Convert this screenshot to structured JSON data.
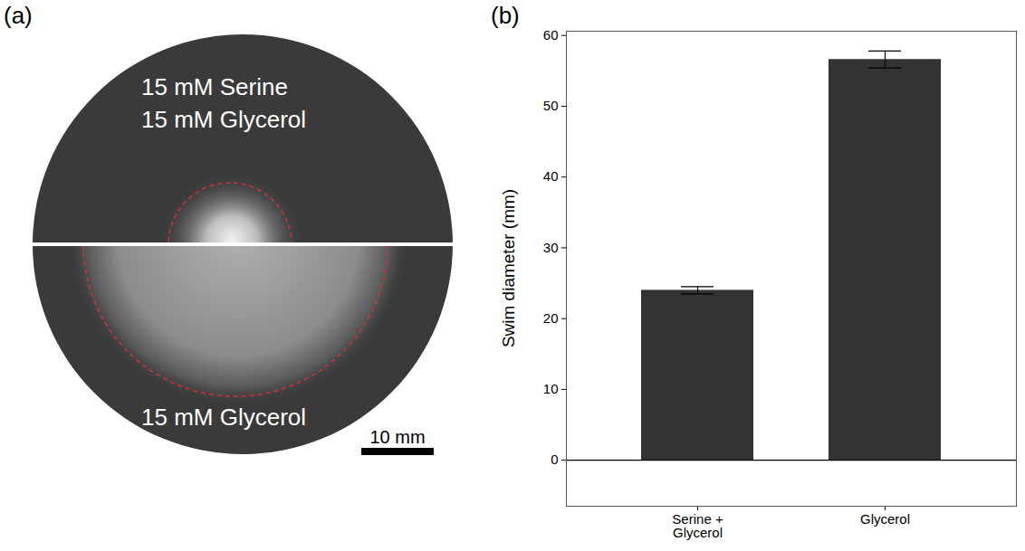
{
  "panel_labels": [
    "(a)",
    "(b)"
  ],
  "photo": {
    "top_texts": [
      "15 mM Serine",
      "15 mM Glycerol"
    ],
    "bottom_text": "15 mM Glycerol",
    "scale_bar": "10 mm"
  },
  "chart_data": {
    "type": "bar",
    "categories": [
      "Serine + Glycerol",
      "Glycerol"
    ],
    "values": [
      24.0,
      56.6
    ],
    "errors": [
      0.5,
      1.2
    ],
    "color": "#333333",
    "ylabel": "Swim diameter (mm)",
    "ylim": [
      -6.5,
      60.6
    ],
    "yticks": [
      0,
      10,
      20,
      30,
      40,
      50,
      60
    ],
    "grid": false
  }
}
